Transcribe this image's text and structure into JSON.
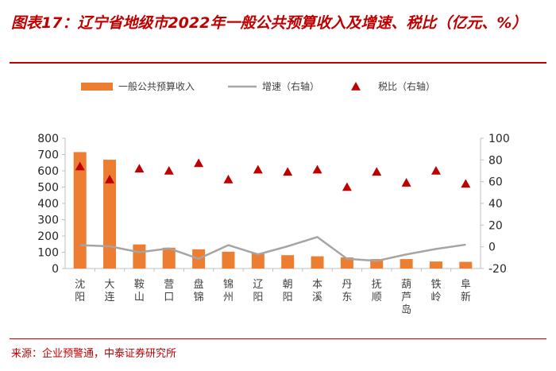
{
  "title": "图表17：辽宁省地级市2022年一般公共预算收入及增速、税比（亿元、%）",
  "source": "来源：企业预警通，中泰证券研究所",
  "colors": {
    "bar": "#ed7d31",
    "line": "#a5a5a5",
    "marker": "#c00000",
    "title": "#c00000"
  },
  "chart_data": {
    "type": "bar",
    "title": "辽宁省地级市2022年一般公共预算收入及增速、税比（亿元、%）",
    "categories": [
      "沈阳",
      "大连",
      "鞍山",
      "营口",
      "盘锦",
      "锦州",
      "辽阳",
      "朝阳",
      "本溪",
      "丹东",
      "抚顺",
      "葫芦岛",
      "铁岭",
      "阜新"
    ],
    "ylim_left": [
      0,
      800
    ],
    "yticks_left": [
      0,
      100,
      200,
      300,
      400,
      500,
      600,
      700,
      800
    ],
    "ylim_right": [
      -20,
      100
    ],
    "yticks_right": [
      -20,
      0,
      20,
      40,
      60,
      80,
      100
    ],
    "series": [
      {
        "name": "一般公共预算收入",
        "type": "bar",
        "axis": "left",
        "values": [
          715,
          668,
          148,
          128,
          118,
          103,
          93,
          82,
          75,
          68,
          58,
          58,
          43,
          41
        ]
      },
      {
        "name": "增速（右轴）",
        "type": "line",
        "axis": "right",
        "values": [
          1.5,
          0.5,
          -5,
          -1.5,
          -11,
          1.5,
          -7,
          0.5,
          9,
          -11,
          -13,
          -7,
          -2,
          2
        ]
      },
      {
        "name": "税比（右轴）",
        "type": "scatter",
        "axis": "right",
        "values": [
          74,
          62,
          72,
          70,
          77,
          62,
          71,
          69,
          71,
          55,
          69,
          59,
          70,
          58
        ]
      }
    ]
  }
}
